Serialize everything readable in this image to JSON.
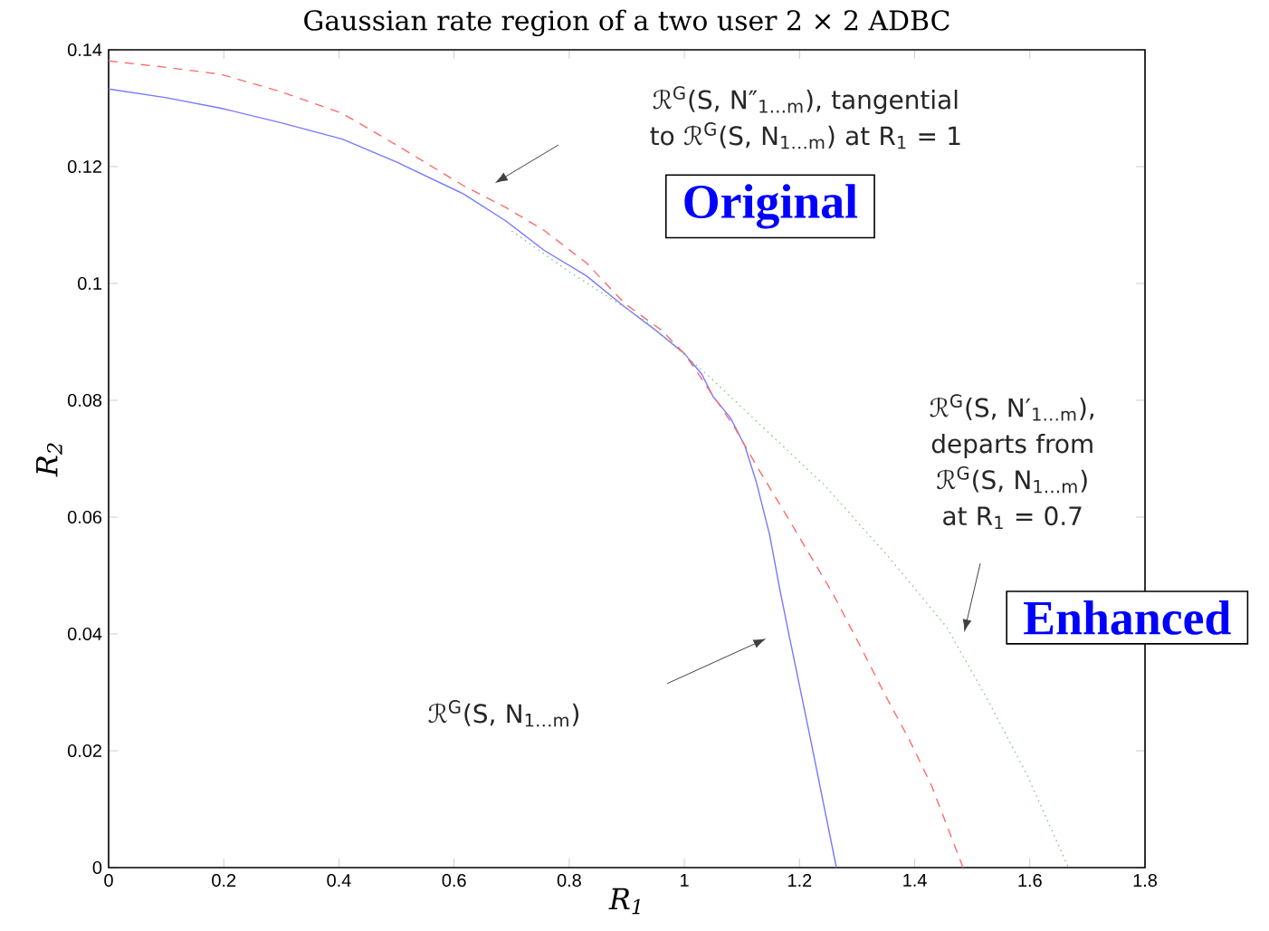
{
  "chart_data": {
    "type": "line",
    "title": "Gaussian rate region of a two user 2 × 2 ADBC",
    "xlabel": "R$_{1}$",
    "ylabel": "R$_{2}$",
    "xlim": [
      0,
      1.8
    ],
    "ylim": [
      0,
      0.14
    ],
    "xticks": [
      0,
      0.2,
      0.4,
      0.6,
      0.8,
      1,
      1.2,
      1.4,
      1.6,
      1.8
    ],
    "yticks": [
      0,
      0.02,
      0.04,
      0.06,
      0.08,
      0.1,
      0.12,
      0.14
    ],
    "grid": false,
    "marker": "none",
    "series": [
      {
        "color": "#7878ff",
        "line_style": "solid",
        "x": [
          0,
          0.1,
          0.195,
          0.3,
          0.406,
          0.5,
          0.617,
          0.69,
          0.756,
          0.83,
          0.896,
          0.95,
          1.0,
          1.03,
          1.05,
          1.08,
          1.105,
          1.125,
          1.148,
          1.165,
          1.182,
          1.218,
          1.264
        ],
        "values": [
          0.1333,
          0.1318,
          0.13,
          0.1275,
          0.1247,
          0.1208,
          0.1153,
          0.1107,
          0.1057,
          0.1013,
          0.096,
          0.092,
          0.088,
          0.0845,
          0.0806,
          0.077,
          0.0722,
          0.066,
          0.057,
          0.048,
          0.0397,
          0.0225,
          0
        ]
      },
      {
        "color": "#ff6a6a",
        "line_style": "dashed",
        "x": [
          0,
          0.1,
          0.195,
          0.3,
          0.406,
          0.5,
          0.617,
          0.69,
          0.756,
          0.83,
          0.896,
          0.96,
          1.0,
          1.085,
          1.13,
          1.176,
          1.215,
          1.259,
          1.305,
          1.35,
          1.39,
          1.429,
          1.484
        ],
        "values": [
          0.1381,
          0.137,
          0.1358,
          0.1328,
          0.1291,
          0.1237,
          0.1167,
          0.113,
          0.1091,
          0.1035,
          0.0966,
          0.092,
          0.088,
          0.0757,
          0.068,
          0.0605,
          0.054,
          0.0467,
          0.038,
          0.0293,
          0.022,
          0.0141,
          0
        ]
      },
      {
        "color": "#8cc88c",
        "line_style": "dotted",
        "x": [
          0.7,
          0.8,
          0.931,
          1.036,
          1.148,
          1.245,
          1.351,
          1.456,
          1.527,
          1.597,
          1.667
        ],
        "values": [
          0.109,
          0.102,
          0.0937,
          0.0847,
          0.0743,
          0.0653,
          0.0536,
          0.0411,
          0.0287,
          0.0155,
          0
        ]
      }
    ],
    "annotations": [
      "ℛ$^{G}$(S, N″$_{1…m}$), tangential to ℛ$^{G}$(S, N$_{1…m}$) at R$_{1}$ = 1",
      "ℛ$^{G}$(S, N′$_{1…m}$), departs from ℛ$^{G}$(S, N$_{1…m}$) at R$_{1}$ = 0.7",
      "ℛ$^{G}$(S, N$_{1…m}$)",
      "Original",
      "Enhanced"
    ]
  }
}
